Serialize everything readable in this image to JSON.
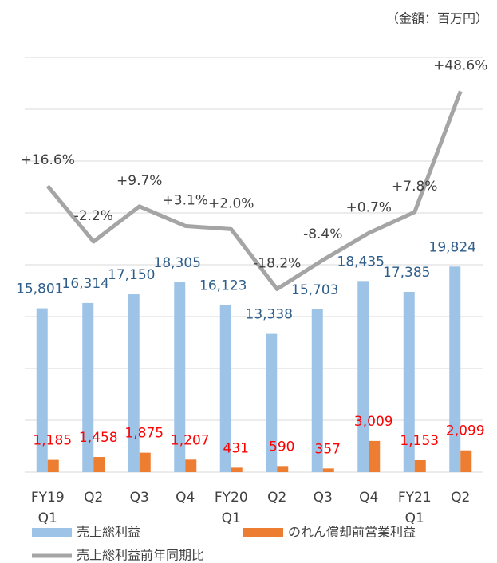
{
  "chart_data": {
    "type": "bar-line",
    "unit_note": "（金額：百万円）",
    "categories": [
      "FY19\nQ1",
      "Q2",
      "Q3",
      "Q4",
      "FY20\nQ1",
      "Q2",
      "Q3",
      "Q4",
      "FY21\nQ1",
      "Q2"
    ],
    "ylim": [
      0,
      40000
    ],
    "yticks": [
      0,
      5000,
      10000,
      15000,
      20000,
      25000,
      30000,
      35000,
      40000
    ],
    "ytick_labels": false,
    "grid": true,
    "y2lim": [
      -80,
      60
    ],
    "series": [
      {
        "name": "売上総利益",
        "kind": "bar",
        "color": "#9dc3e6",
        "label_color": "#2e5d8a",
        "values": [
          15801,
          16314,
          17150,
          18305,
          16123,
          13338,
          15703,
          18435,
          17385,
          19824
        ],
        "value_labels": [
          "15,801",
          "16,314",
          "17,150",
          "18,305",
          "16,123",
          "13,338",
          "15,703",
          "18,435",
          "17,385",
          "19,824"
        ]
      },
      {
        "name": "のれん償却前営業利益",
        "kind": "bar",
        "color": "#ed7d31",
        "label_color": "#ff0000",
        "values": [
          1185,
          1458,
          1875,
          1207,
          431,
          590,
          357,
          3009,
          1153,
          2099
        ],
        "value_labels": [
          "1,185",
          "1,458",
          "1,875",
          "1,207",
          "431",
          "590",
          "357",
          "3,009",
          "1,153",
          "2,099"
        ]
      },
      {
        "name": "売上総利益前年同期比",
        "kind": "line",
        "axis": "y2",
        "color": "#a5a5a5",
        "label_color": "#404040",
        "values": [
          16.6,
          -2.2,
          9.7,
          3.1,
          2.0,
          -18.2,
          -8.4,
          0.7,
          7.8,
          48.6
        ],
        "value_labels": [
          "+16.6%",
          "-2.2%",
          "+9.7%",
          "+3.1%",
          "+2.0%",
          "-18.2%",
          "-8.4%",
          "+0.7%",
          "+7.8%",
          "+48.6%"
        ]
      }
    ]
  }
}
